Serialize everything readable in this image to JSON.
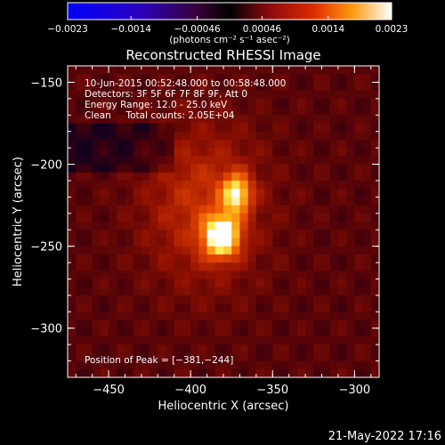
{
  "chart_data": {
    "type": "heatmap",
    "title": "Reconstructed RHESSI Image",
    "xlabel": "Heliocentric X (arcsec)",
    "ylabel": "Heliocentric Y (arcsec)",
    "xlim": [
      -475,
      -285
    ],
    "ylim": [
      -330,
      -140
    ],
    "x_ticks": [
      -450,
      -400,
      -350,
      -300
    ],
    "y_ticks": [
      -150,
      -200,
      -250,
      -300
    ],
    "x_tick_labels": [
      "−450",
      "−400",
      "−350",
      "−300"
    ],
    "y_tick_labels": [
      "−150",
      "−200",
      "−250",
      "−300"
    ],
    "colorbar": {
      "min": -0.0023,
      "max": 0.0023,
      "ticks": [
        -0.0023,
        -0.0014,
        -0.00046,
        0.00046,
        0.0014,
        0.0023
      ],
      "tick_labels": [
        "−0.0023",
        "−0.0014",
        "−0.00046",
        "0.00046",
        "0.0014",
        "0.0023"
      ],
      "units_text": "(photons cm⁻² s⁻¹ asec⁻²)"
    },
    "annotations": [
      "10-Jun-2015 00:52:48.000 to 00:58:48.000",
      "Detectors: 3F 5F 6F 7F 8F 9F, Att 0",
      "Energy Range: 12.0 - 25.0 keV",
      "Clean     Total counts: 2.05E+04"
    ],
    "peak_label": "Position of Peak = [−381,−244]",
    "peak": [
      -381,
      -244
    ],
    "sources": [
      {
        "x": -381,
        "y": -244,
        "value": 0.0023
      },
      {
        "x": -372,
        "y": -218,
        "value": 0.0019
      }
    ]
  },
  "footer": {
    "date_stamp": "21-May-2022 17:16"
  }
}
